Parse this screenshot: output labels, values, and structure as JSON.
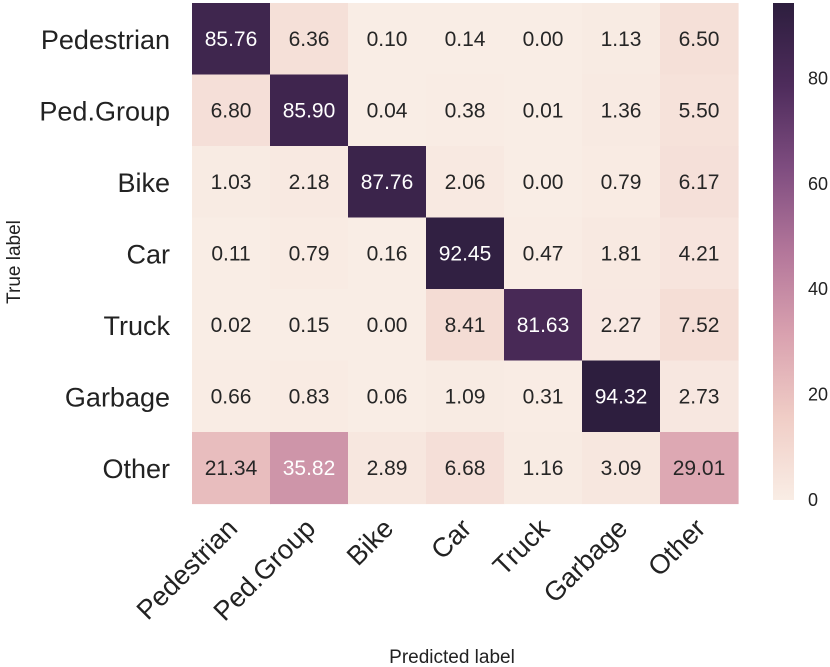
{
  "chart_data": {
    "type": "heatmap",
    "title": "",
    "xlabel": "Predicted label",
    "ylabel": "True label",
    "row_labels": [
      "Pedestrian",
      "Ped.Group",
      "Bike",
      "Car",
      "Truck",
      "Garbage",
      "Other"
    ],
    "col_labels": [
      "Pedestrian",
      "Ped.Group",
      "Bike",
      "Car",
      "Truck",
      "Garbage",
      "Other"
    ],
    "values": [
      [
        85.76,
        6.36,
        0.1,
        0.14,
        0.0,
        1.13,
        6.5
      ],
      [
        6.8,
        85.9,
        0.04,
        0.38,
        0.01,
        1.36,
        5.5
      ],
      [
        1.03,
        2.18,
        87.76,
        2.06,
        0.0,
        0.79,
        6.17
      ],
      [
        0.11,
        0.79,
        0.16,
        92.45,
        0.47,
        1.81,
        4.21
      ],
      [
        0.02,
        0.15,
        0.0,
        8.41,
        81.63,
        2.27,
        7.52
      ],
      [
        0.66,
        0.83,
        0.06,
        1.09,
        0.31,
        94.32,
        2.73
      ],
      [
        21.34,
        35.82,
        2.89,
        6.68,
        1.16,
        3.09,
        29.01
      ]
    ],
    "value_labels": [
      [
        "85.76",
        "6.36",
        "0.10",
        "0.14",
        "0.00",
        "1.13",
        "6.50"
      ],
      [
        "6.80",
        "85.90",
        "0.04",
        "0.38",
        "0.01",
        "1.36",
        "5.50"
      ],
      [
        "1.03",
        "2.18",
        "87.76",
        "2.06",
        "0.00",
        "0.79",
        "6.17"
      ],
      [
        "0.11",
        "0.79",
        "0.16",
        "92.45",
        "0.47",
        "1.81",
        "4.21"
      ],
      [
        "0.02",
        "0.15",
        "0.00",
        "8.41",
        "81.63",
        "2.27",
        "7.52"
      ],
      [
        "0.66",
        "0.83",
        "0.06",
        "1.09",
        "0.31",
        "94.32",
        "2.73"
      ],
      [
        "21.34",
        "35.82",
        "2.89",
        "6.68",
        "1.16",
        "3.09",
        "29.01"
      ]
    ],
    "colorbar": {
      "range": [
        0,
        94.32
      ],
      "ticks": [
        0,
        20,
        40,
        60,
        80
      ],
      "tick_labels": [
        "0",
        "20",
        "40",
        "60",
        "80"
      ],
      "colors": [
        "#f9ede5",
        "#f0cdc6",
        "#d9a1af",
        "#b3769a",
        "#7f4d80",
        "#4e2c5c",
        "#2d1e3e"
      ]
    },
    "text_colors": {
      "light": "#ffffff",
      "dark": "#262626"
    },
    "grid": false,
    "legend": "colorbar-right"
  }
}
